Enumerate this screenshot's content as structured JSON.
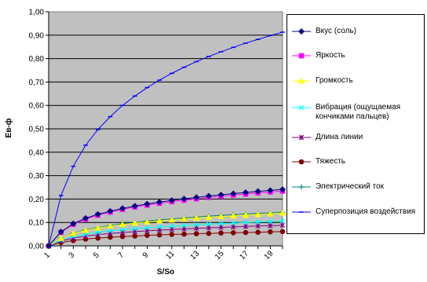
{
  "chart_data": {
    "type": "line",
    "xlabel": "S/So",
    "ylabel": "Eв-ф",
    "ylim": [
      0,
      1
    ],
    "xlim": [
      1,
      20
    ],
    "x": [
      1,
      2,
      3,
      4,
      5,
      6,
      7,
      8,
      9,
      10,
      11,
      12,
      13,
      14,
      15,
      16,
      17,
      18,
      19,
      20
    ],
    "x_tick_labels": [
      "1",
      "3",
      "5",
      "7",
      "9",
      "11",
      "13",
      "15",
      "17",
      "19"
    ],
    "y_tick_labels": [
      "0,00",
      "0,10",
      "0,20",
      "0,30",
      "0,40",
      "0,50",
      "0,60",
      "0,70",
      "0,80",
      "0,90",
      "1,00"
    ],
    "grid": true,
    "legend_position": "right",
    "series": [
      {
        "name": "Вкус (соль)",
        "color": "#000080",
        "marker": "diamond",
        "values": [
          0.0,
          0.06,
          0.095,
          0.118,
          0.135,
          0.148,
          0.16,
          0.17,
          0.179,
          0.187,
          0.194,
          0.201,
          0.207,
          0.213,
          0.218,
          0.223,
          0.228,
          0.233,
          0.237,
          0.241
        ]
      },
      {
        "name": "Яркость",
        "color": "#ff00ff",
        "marker": "square",
        "values": [
          0.0,
          0.058,
          0.092,
          0.114,
          0.131,
          0.144,
          0.156,
          0.166,
          0.174,
          0.182,
          0.189,
          0.195,
          0.201,
          0.207,
          0.212,
          0.217,
          0.221,
          0.226,
          0.23,
          0.234
        ]
      },
      {
        "name": "Громкость",
        "color": "#ffff00",
        "marker": "triangle",
        "values": [
          0.0,
          0.033,
          0.053,
          0.066,
          0.076,
          0.084,
          0.091,
          0.097,
          0.102,
          0.107,
          0.111,
          0.115,
          0.119,
          0.122,
          0.125,
          0.128,
          0.131,
          0.134,
          0.137,
          0.14
        ]
      },
      {
        "name": "Вибрация (ощущаемая кончиками пальцев)",
        "color": "#00ffff",
        "marker": "x",
        "values": [
          0.0,
          0.025,
          0.04,
          0.05,
          0.058,
          0.064,
          0.069,
          0.073,
          0.077,
          0.081,
          0.084,
          0.087,
          0.09,
          0.093,
          0.095,
          0.097,
          0.1,
          0.102,
          0.104,
          0.106
        ]
      },
      {
        "name": "Длина линии",
        "color": "#800080",
        "marker": "star",
        "values": [
          0.0,
          0.021,
          0.033,
          0.042,
          0.048,
          0.053,
          0.057,
          0.061,
          0.064,
          0.067,
          0.07,
          0.072,
          0.075,
          0.077,
          0.079,
          0.081,
          0.083,
          0.085,
          0.086,
          0.088
        ]
      },
      {
        "name": "Тяжесть",
        "color": "#800000",
        "marker": "circle",
        "values": [
          0.0,
          0.014,
          0.023,
          0.029,
          0.033,
          0.037,
          0.04,
          0.042,
          0.045,
          0.047,
          0.049,
          0.05,
          0.052,
          0.053,
          0.055,
          0.056,
          0.057,
          0.058,
          0.06,
          0.061
        ]
      },
      {
        "name": "Электрический ток",
        "color": "#008080",
        "marker": "plus",
        "values": [
          0.0,
          0.034,
          0.054,
          0.068,
          0.078,
          0.087,
          0.094,
          0.1,
          0.106,
          0.111,
          0.115,
          0.119,
          0.123,
          0.127,
          0.13,
          0.133,
          0.136,
          0.139,
          0.141,
          0.144
        ]
      },
      {
        "name": "Суперпозиция воздействия",
        "color": "#0000ff",
        "marker": "dash",
        "values": [
          0.0,
          0.215,
          0.34,
          0.43,
          0.497,
          0.552,
          0.6,
          0.64,
          0.676,
          0.708,
          0.737,
          0.763,
          0.787,
          0.809,
          0.829,
          0.848,
          0.866,
          0.882,
          0.898,
          0.913
        ]
      }
    ]
  }
}
